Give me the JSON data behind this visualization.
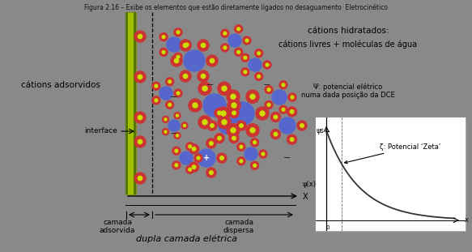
{
  "bg_color": "#898989",
  "title_text": "Figura 2.16 – Exibe os elementos que estão diretamente ligados no desaguamento  Eletrocinético",
  "title_fontsize": 6,
  "title_color": "#111111",
  "label_catios_adsorvidos": "cátions adsorvidos",
  "label_catios_hidratados": "cátions hidratados:",
  "label_catios_livres": "cátions livres + moléculas de água",
  "label_interface": "interface",
  "label_camada_adsorvida": "camada\nadsorvida",
  "label_camada_dispersa": "camada\ndispersa",
  "label_dupla": "dupla camada elétrica",
  "label_psi_text": "Ψ: potencial elétrico\nnuma dada posição da DCE",
  "label_zeta": "ζ: Potencial ‘Zeta’",
  "label_psi_s": "ψs",
  "label_psi_x": "ψ(x)",
  "red_color": "#cc3333",
  "blue_color": "#5566cc",
  "green_wall": "#a0c000",
  "green_dark": "#557700"
}
